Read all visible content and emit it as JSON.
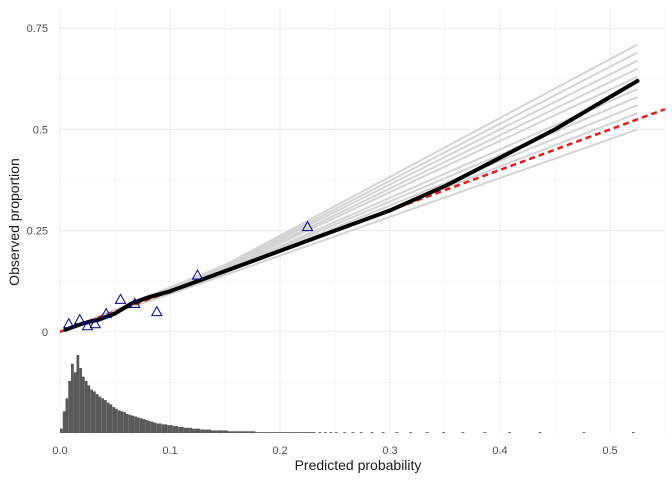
{
  "chart_data": {
    "type": "line",
    "title": "",
    "xlabel": "Predicted probability",
    "ylabel": "Observed proportion",
    "xlim": [
      0,
      0.55
    ],
    "ylim": [
      -0.25,
      0.8
    ],
    "x_ticks": [
      {
        "value": 0,
        "label": "0.0"
      },
      {
        "value": 0.1,
        "label": "0.1"
      },
      {
        "value": 0.2,
        "label": "0.2"
      },
      {
        "value": 0.3,
        "label": "0.3"
      },
      {
        "value": 0.4,
        "label": "0.4"
      },
      {
        "value": 0.5,
        "label": "0.5"
      }
    ],
    "y_ticks": [
      {
        "value": 0,
        "label": "0"
      },
      {
        "value": 0.25,
        "label": "0.25"
      },
      {
        "value": 0.5,
        "label": "0.5"
      },
      {
        "value": 0.75,
        "label": "0.75"
      }
    ],
    "grid": true,
    "legend": "none",
    "colors": {
      "calibration": "#000000",
      "bootstrap": "#d3d3d3",
      "reference": "#e41a1c",
      "points": "#00008b",
      "histogram": "#595959",
      "grid": "#ebebeb"
    },
    "reference_line": {
      "x": [
        0,
        0.55
      ],
      "y": [
        0,
        0.55
      ]
    },
    "calibration_curve": {
      "x": [
        0.005,
        0.02,
        0.035,
        0.05,
        0.065,
        0.08,
        0.1,
        0.125,
        0.15,
        0.2,
        0.25,
        0.3,
        0.35,
        0.4,
        0.45,
        0.5,
        0.525
      ],
      "y": [
        0.005,
        0.02,
        0.03,
        0.045,
        0.07,
        0.085,
        0.1,
        0.125,
        0.15,
        0.2,
        0.25,
        0.3,
        0.36,
        0.43,
        0.5,
        0.58,
        0.62
      ]
    },
    "bootstrap_curves": {
      "x_knots": [
        0.005,
        0.15,
        0.525
      ],
      "y_at_knots": [
        [
          0.005,
          0.14,
          0.5
        ],
        [
          0.005,
          0.145,
          0.54
        ],
        [
          0.005,
          0.147,
          0.56
        ],
        [
          0.005,
          0.15,
          0.58
        ],
        [
          0.005,
          0.152,
          0.6
        ],
        [
          0.005,
          0.155,
          0.63
        ],
        [
          0.005,
          0.157,
          0.65
        ],
        [
          0.005,
          0.16,
          0.67
        ],
        [
          0.005,
          0.162,
          0.69
        ],
        [
          0.005,
          0.165,
          0.71
        ]
      ]
    },
    "grouped_points": {
      "x": [
        0.008,
        0.018,
        0.025,
        0.032,
        0.042,
        0.055,
        0.068,
        0.088,
        0.125,
        0.225
      ],
      "y": [
        0.02,
        0.03,
        0.015,
        0.02,
        0.045,
        0.08,
        0.07,
        0.05,
        0.14,
        0.26
      ]
    },
    "histogram": {
      "bin_width": 0.0025,
      "bin_start": 0.0,
      "counts": [
        5,
        25,
        40,
        60,
        80,
        70,
        90,
        75,
        65,
        60,
        55,
        50,
        48,
        45,
        42,
        40,
        38,
        35,
        33,
        30,
        28,
        26,
        25,
        24,
        22,
        21,
        20,
        19,
        18,
        17,
        16,
        15,
        14,
        13,
        12,
        11,
        11,
        10,
        10,
        9,
        9,
        8,
        8,
        7,
        7,
        6,
        6,
        6,
        5,
        5,
        5,
        4,
        4,
        4,
        4,
        3,
        3,
        3,
        3,
        3,
        3,
        2,
        2,
        2,
        2,
        2,
        2,
        2,
        2,
        2,
        2,
        1,
        1,
        1,
        1,
        1,
        1,
        1,
        1,
        1,
        1,
        1,
        1,
        1,
        1,
        1,
        1,
        1,
        1,
        1,
        1,
        1,
        1,
        0,
        1,
        0,
        1,
        0,
        1,
        0,
        1,
        0,
        0,
        1,
        0,
        0,
        1,
        0,
        0,
        1,
        0,
        0,
        0,
        1,
        0,
        0,
        0,
        1,
        0,
        0,
        0,
        0,
        1,
        0,
        0,
        0,
        0,
        1,
        0,
        0,
        0,
        0,
        0,
        1,
        0,
        0,
        0,
        0,
        0,
        1,
        0,
        0,
        0,
        0,
        0,
        0,
        1,
        0,
        0,
        0,
        0,
        0,
        0,
        0,
        1,
        0,
        0,
        0,
        0,
        0,
        0,
        0,
        0,
        1,
        0,
        0,
        0,
        0,
        0,
        0,
        0,
        0,
        0,
        0,
        1,
        0,
        0,
        0,
        0,
        0,
        0,
        0,
        0,
        0,
        0,
        0,
        0,
        0,
        0,
        0,
        1,
        0,
        0,
        0,
        0,
        0,
        0,
        0,
        0,
        0,
        0,
        0,
        0,
        0,
        0,
        0,
        0,
        0,
        1
      ]
    }
  }
}
